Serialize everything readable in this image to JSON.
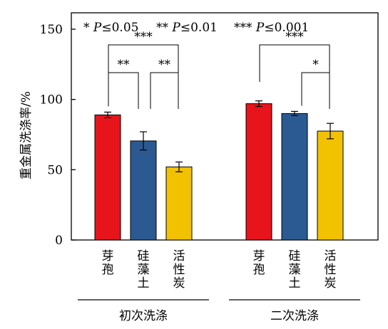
{
  "chart_data": {
    "type": "bar",
    "ylabel": "重金属洗涤率/%",
    "ylim": [
      0,
      150
    ],
    "yticks": [
      0,
      50,
      100,
      150
    ],
    "significance_legend": [
      {
        "stars": "*",
        "text": "P≤0.05"
      },
      {
        "stars": "**",
        "text": "P≤0.01"
      },
      {
        "stars": "***",
        "text": "P≤0.001"
      }
    ],
    "groups": [
      {
        "name": "初次洗涤",
        "bars": [
          {
            "category": "芽孢",
            "value": 89,
            "error": 2,
            "color": "#e8141b"
          },
          {
            "category": "硅藻土",
            "value": 70.5,
            "error": 6.5,
            "color": "#2b5a93"
          },
          {
            "category": "活性炭",
            "value": 52,
            "error": 3.5,
            "color": "#f2c200"
          }
        ],
        "comparisons": [
          {
            "from": 0,
            "to": 1,
            "label": "**",
            "level": 1
          },
          {
            "from": 1,
            "to": 2,
            "label": "**",
            "level": 1
          },
          {
            "from": 0,
            "to": 2,
            "label": "***",
            "level": 2
          }
        ]
      },
      {
        "name": "二次洗涤",
        "bars": [
          {
            "category": "芽孢",
            "value": 97,
            "error": 2,
            "color": "#e8141b"
          },
          {
            "category": "硅藻土",
            "value": 90,
            "error": 1.5,
            "color": "#2b5a93"
          },
          {
            "category": "活性炭",
            "value": 77.5,
            "error": 5.5,
            "color": "#f2c200"
          }
        ],
        "comparisons": [
          {
            "from": 1,
            "to": 2,
            "label": "*",
            "level": 1
          },
          {
            "from": 0,
            "to": 2,
            "label": "***",
            "level": 2
          }
        ]
      }
    ],
    "grid": false,
    "legend": "none"
  }
}
